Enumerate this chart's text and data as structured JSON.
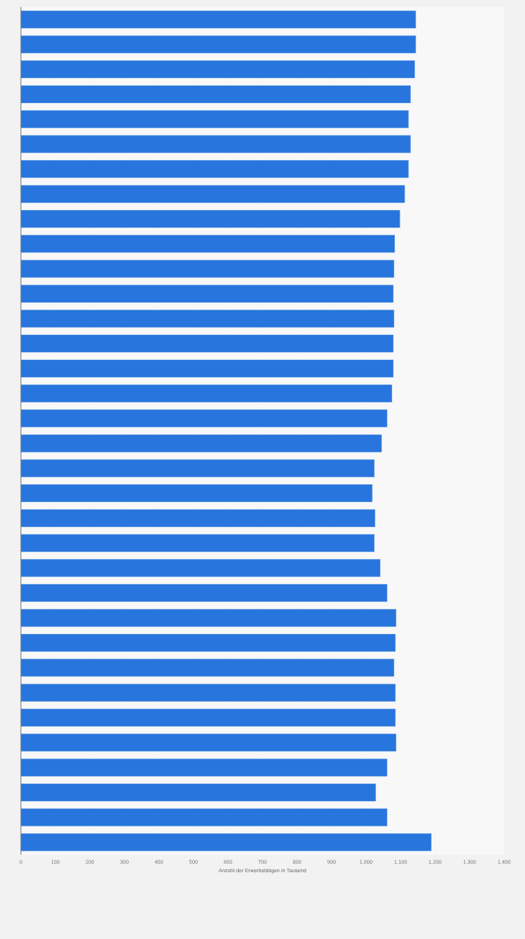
{
  "chart_data": {
    "type": "bar",
    "orientation": "horizontal",
    "xlabel": "Anzahl der Erwerbstätigen in Tausend",
    "categories": [
      null,
      null,
      null,
      null,
      null,
      null,
      null,
      null,
      null,
      null,
      null,
      null,
      null,
      null,
      null,
      null,
      null,
      null,
      null,
      null,
      null,
      null,
      null,
      null,
      null,
      null,
      null,
      null,
      null,
      null,
      null,
      null,
      null,
      null
    ],
    "values": [
      1144,
      1144,
      1141,
      1129,
      1123,
      1129,
      1123,
      1112,
      1098,
      1083,
      1081,
      1079,
      1081,
      1079,
      1079,
      1075,
      1061,
      1045,
      1024,
      1018,
      1026,
      1024,
      1041,
      1061,
      1087,
      1085,
      1081,
      1085,
      1085,
      1087,
      1061,
      1028,
      1061,
      1189
    ],
    "color": "#2876dd",
    "xlim": [
      0,
      1400
    ],
    "xticks": [
      0,
      100,
      200,
      300,
      400,
      500,
      600,
      700,
      800,
      900,
      {
        "value": 1000,
        "label": "1.000"
      },
      {
        "value": 1100,
        "label": "1.100"
      },
      {
        "value": 1200,
        "label": "1.200"
      },
      {
        "value": 1300,
        "label": "1.300"
      },
      {
        "value": 1400,
        "label": "1.400"
      }
    ],
    "grid": "x"
  }
}
